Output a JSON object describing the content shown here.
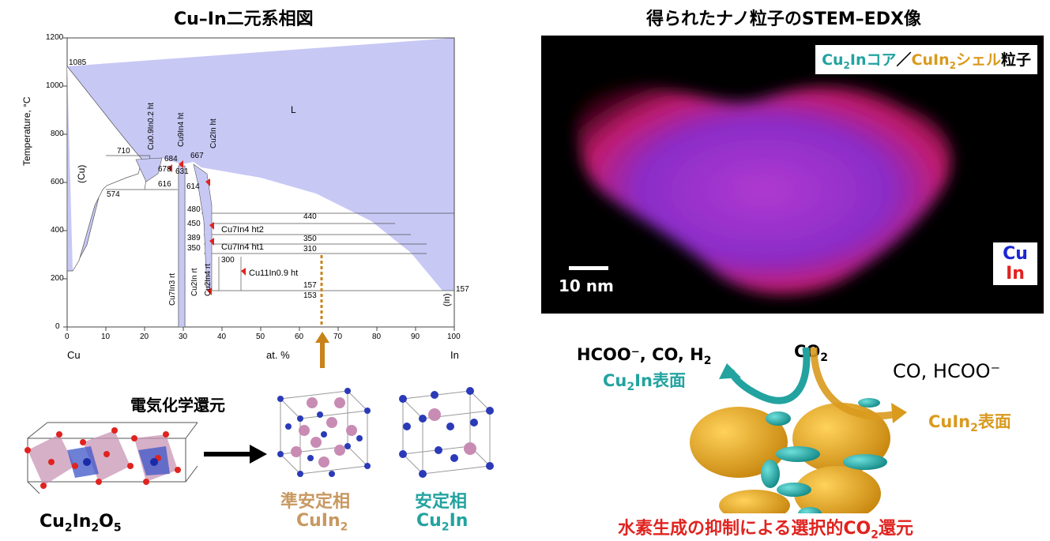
{
  "left_title": "Cu–In二元系相図",
  "right_title": "得られたナノ粒子のSTEM–EDX像",
  "phase_diagram": {
    "ylabel": "Temperature, °C",
    "xlabel": "at. %",
    "x_left": "Cu",
    "x_right": "In",
    "x_ticks": [
      "0",
      "10",
      "20",
      "30",
      "40",
      "50",
      "60",
      "70",
      "80",
      "90",
      "100"
    ],
    "y_ticks": [
      "0",
      "200",
      "400",
      "600",
      "800",
      "1000",
      "1200"
    ],
    "liquid": "L",
    "cu_phase": "(Cu)",
    "in_phase": "(In)",
    "temps": {
      "t1085": "1085",
      "t710": "710",
      "t684": "684",
      "t678": "678",
      "t667": "667",
      "t631": "631",
      "t616": "616",
      "t614": "614",
      "t574": "574",
      "t480": "480",
      "t450": "450",
      "t440": "440",
      "t389": "389",
      "t350a": "350",
      "t350b": "350",
      "t310": "310",
      "t300": "300",
      "t157a": "157",
      "t153": "153",
      "t157b": "157"
    },
    "phases": {
      "cu09in02": "Cu0.9In0.2 ht",
      "cu2in4": "Cu9In4 ht",
      "cu2in_ht": "Cu2In ht",
      "cu7in4_ht2": "Cu7In4 ht2",
      "cu7in4_ht1": "Cu7In4 ht1",
      "cu11in09": "Cu11In0.9 ht",
      "cu7in3_rt": "Cu7In3 rt",
      "cu2in_rt": "Cu2In rt",
      "cu2in4_rt": "Cu2In4 rt"
    }
  },
  "reaction_label": "電気化学還元",
  "compound_label": {
    "base": "Cu",
    "s1": "2",
    "mid": "In",
    "s2": "2",
    "end": "O",
    "s3": "5"
  },
  "metastable": {
    "line1": "準安定相",
    "base": "CuIn",
    "sub": "2"
  },
  "stable": {
    "line1": "安定相",
    "base": "Cu",
    "sub": "2",
    "end": "In"
  },
  "stem": {
    "legend": {
      "p1": "Cu",
      "s1": "2",
      "p2": "Inコア",
      "sep": "／",
      "p3": "CuIn",
      "s2": "2",
      "p4": "シェル",
      "p5": "粒子"
    },
    "scale_bar": "10 nm",
    "el_cu": "Cu",
    "el_in": "In"
  },
  "mechanism": {
    "left_products": "HCOO⁻, CO, H",
    "left_sub": "2",
    "co2_base": "CO",
    "co2_sub": "2",
    "right_products": "CO, HCOO⁻",
    "cu2in_surface": {
      "a": "Cu",
      "s": "2",
      "b": "In表面"
    },
    "cuin2_surface": {
      "a": "CuIn",
      "s": "2",
      "b": "表面"
    },
    "conclusion": {
      "a": "水素生成の抑制による選択的CO",
      "s": "2",
      "b": "還元"
    }
  },
  "colors": {
    "teal": "#22a3a0",
    "gold": "#e6a21e",
    "red": "#e0231f",
    "blue": "#1a27d4",
    "lavender": "#c8c8f5"
  }
}
